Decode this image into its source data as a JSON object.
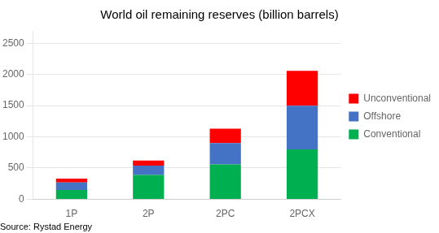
{
  "chart_data": {
    "type": "bar",
    "title": "World oil remaining reserves (billion barrels)",
    "categories": [
      "1P",
      "2P",
      "2PC",
      "2PCX"
    ],
    "series": [
      {
        "name": "Conventional",
        "color": "#00B050",
        "values": [
          150,
          390,
          560,
          800
        ]
      },
      {
        "name": "Offshore",
        "color": "#4472C4",
        "values": [
          120,
          150,
          340,
          700
        ]
      },
      {
        "name": "Unconventional",
        "color": "#FF0000",
        "values": [
          60,
          80,
          230,
          560
        ]
      }
    ],
    "stacked": true,
    "ylim": [
      0,
      2700
    ],
    "yticks": [
      0,
      500,
      1000,
      1500,
      2000,
      2500
    ],
    "grid": "y",
    "legend": "right",
    "annotations": [
      "Source: Rystad Energy"
    ]
  }
}
